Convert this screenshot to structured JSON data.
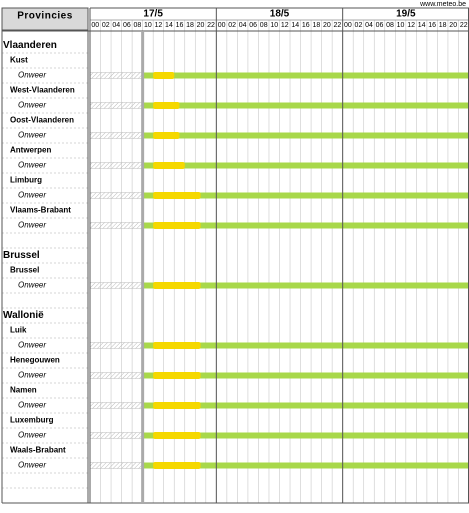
{
  "site": "www.meteo.be",
  "header": {
    "title": "Provincies",
    "days": [
      "17/5",
      "18/5",
      "19/5"
    ],
    "hours": [
      "00",
      "02",
      "04",
      "06",
      "08",
      "10",
      "12",
      "14",
      "16",
      "18",
      "20",
      "22"
    ]
  },
  "now": 10,
  "groups": [
    {
      "name": "Vlaanderen",
      "provinces": [
        {
          "name": "Kust",
          "phenomenon": "Onweer",
          "bars": [
            {
              "from": 0,
              "to": 10,
              "color": "#d4d4d4"
            },
            {
              "from": 10,
              "to": 72,
              "color": "#a8d84a"
            },
            {
              "from": 12,
              "to": 16,
              "color": "#f5d800"
            }
          ]
        },
        {
          "name": "West-Vlaanderen",
          "phenomenon": "Onweer",
          "bars": [
            {
              "from": 0,
              "to": 10,
              "color": "#d4d4d4"
            },
            {
              "from": 10,
              "to": 72,
              "color": "#a8d84a"
            },
            {
              "from": 12,
              "to": 17,
              "color": "#f5d800"
            }
          ]
        },
        {
          "name": "Oost-Vlaanderen",
          "phenomenon": "Onweer",
          "bars": [
            {
              "from": 0,
              "to": 10,
              "color": "#d4d4d4"
            },
            {
              "from": 10,
              "to": 72,
              "color": "#a8d84a"
            },
            {
              "from": 12,
              "to": 17,
              "color": "#f5d800"
            }
          ]
        },
        {
          "name": "Antwerpen",
          "phenomenon": "Onweer",
          "bars": [
            {
              "from": 0,
              "to": 10,
              "color": "#d4d4d4"
            },
            {
              "from": 10,
              "to": 72,
              "color": "#a8d84a"
            },
            {
              "from": 12,
              "to": 18,
              "color": "#f5d800"
            }
          ]
        },
        {
          "name": "Limburg",
          "phenomenon": "Onweer",
          "bars": [
            {
              "from": 0,
              "to": 10,
              "color": "#d4d4d4"
            },
            {
              "from": 10,
              "to": 72,
              "color": "#a8d84a"
            },
            {
              "from": 12,
              "to": 21,
              "color": "#f5d800"
            }
          ]
        },
        {
          "name": "Vlaams-Brabant",
          "phenomenon": "Onweer",
          "bars": [
            {
              "from": 0,
              "to": 10,
              "color": "#d4d4d4"
            },
            {
              "from": 10,
              "to": 72,
              "color": "#a8d84a"
            },
            {
              "from": 12,
              "to": 21,
              "color": "#f5d800"
            }
          ]
        }
      ]
    },
    {
      "name": "Brussel",
      "provinces": [
        {
          "name": "Brussel",
          "phenomenon": "Onweer",
          "bars": [
            {
              "from": 0,
              "to": 10,
              "color": "#d4d4d4"
            },
            {
              "from": 10,
              "to": 72,
              "color": "#a8d84a"
            },
            {
              "from": 12,
              "to": 21,
              "color": "#f5d800"
            }
          ]
        }
      ]
    },
    {
      "name": "Wallonië",
      "provinces": [
        {
          "name": "Luik",
          "phenomenon": "Onweer",
          "bars": [
            {
              "from": 0,
              "to": 10,
              "color": "#d4d4d4"
            },
            {
              "from": 10,
              "to": 72,
              "color": "#a8d84a"
            },
            {
              "from": 12,
              "to": 21,
              "color": "#f5d800"
            }
          ]
        },
        {
          "name": "Henegouwen",
          "phenomenon": "Onweer",
          "bars": [
            {
              "from": 0,
              "to": 10,
              "color": "#d4d4d4"
            },
            {
              "from": 10,
              "to": 72,
              "color": "#a8d84a"
            },
            {
              "from": 12,
              "to": 21,
              "color": "#f5d800"
            }
          ]
        },
        {
          "name": "Namen",
          "phenomenon": "Onweer",
          "bars": [
            {
              "from": 0,
              "to": 10,
              "color": "#d4d4d4"
            },
            {
              "from": 10,
              "to": 72,
              "color": "#a8d84a"
            },
            {
              "from": 12,
              "to": 21,
              "color": "#f5d800"
            }
          ]
        },
        {
          "name": "Luxemburg",
          "phenomenon": "Onweer",
          "bars": [
            {
              "from": 0,
              "to": 10,
              "color": "#d4d4d4"
            },
            {
              "from": 10,
              "to": 72,
              "color": "#a8d84a"
            },
            {
              "from": 12,
              "to": 21,
              "color": "#f5d800"
            }
          ]
        },
        {
          "name": "Waals-Brabant",
          "phenomenon": "Onweer",
          "bars": [
            {
              "from": 0,
              "to": 10,
              "color": "#d4d4d4"
            },
            {
              "from": 10,
              "to": 72,
              "color": "#a8d84a"
            },
            {
              "from": 12,
              "to": 21,
              "color": "#f5d800"
            }
          ]
        }
      ]
    }
  ]
}
